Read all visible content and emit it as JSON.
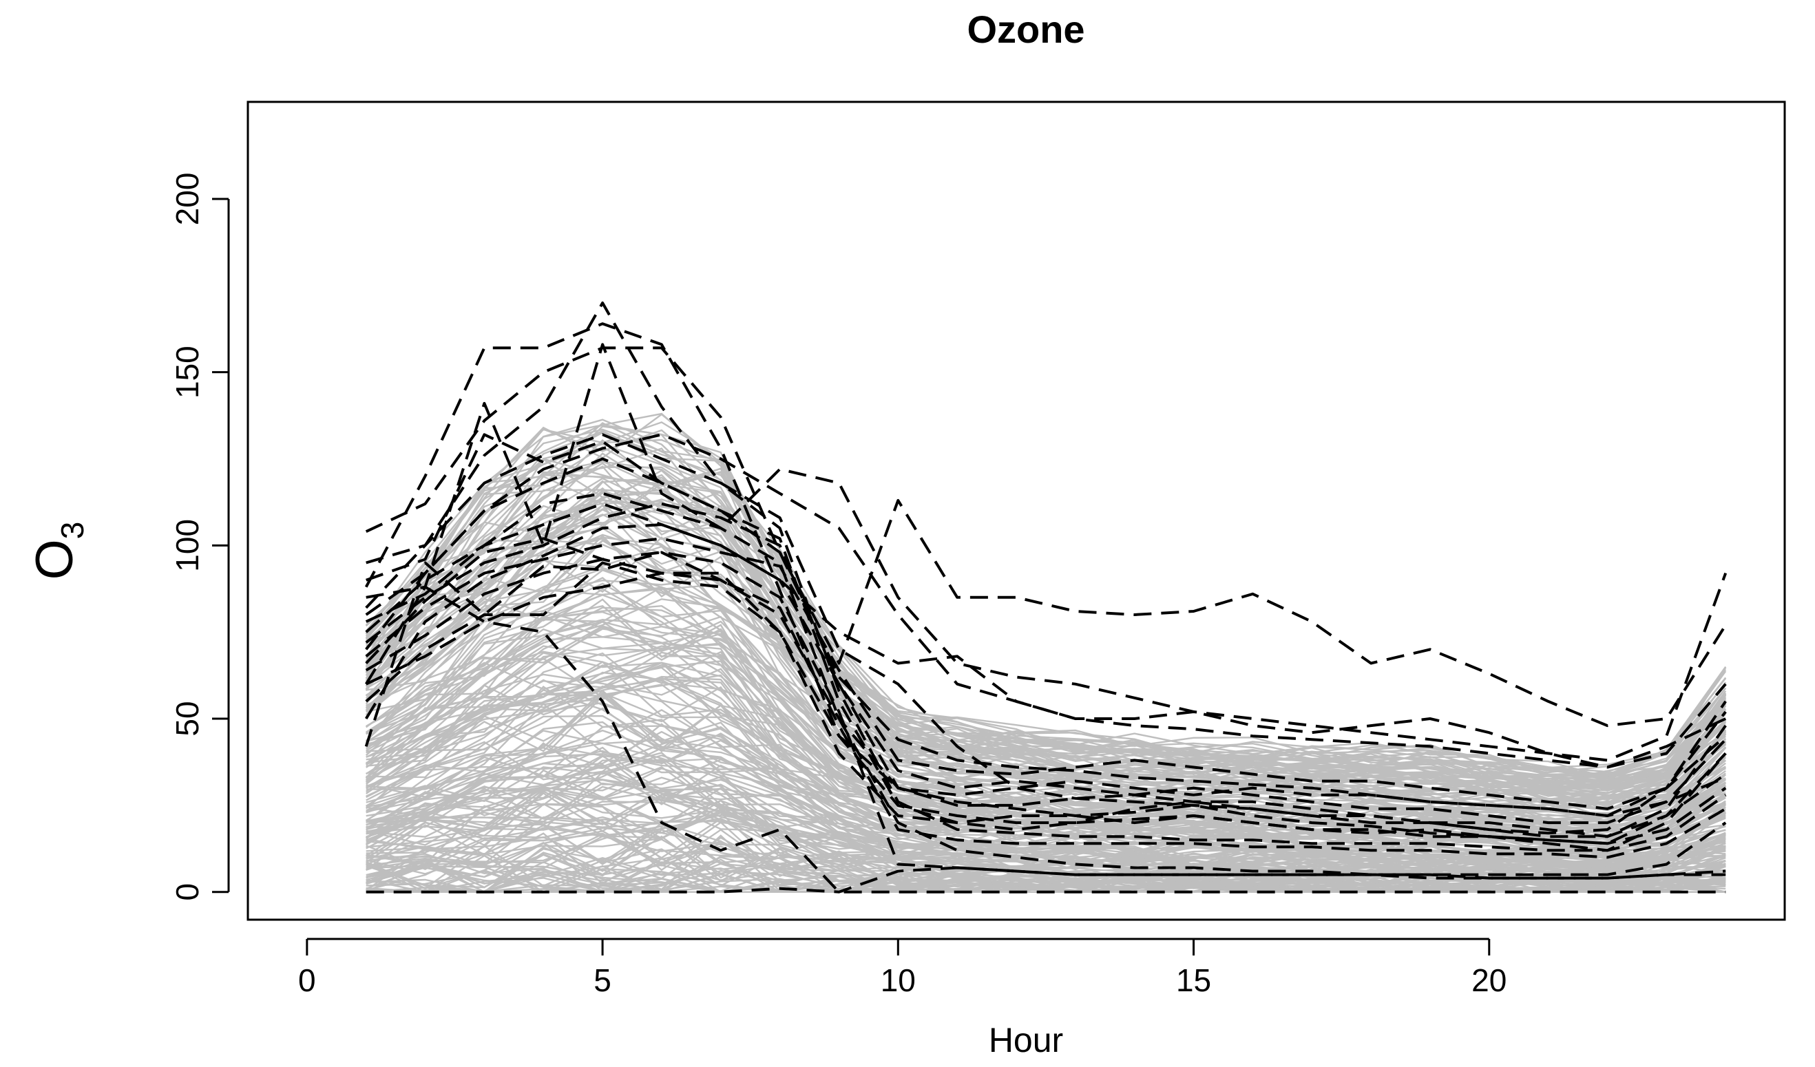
{
  "chart_data": {
    "type": "line",
    "title": "Ozone",
    "xlabel": "Hour",
    "ylabel": "O",
    "ylabel_subscript": "3",
    "xlim": [
      -1,
      25
    ],
    "ylim": [
      -8,
      228
    ],
    "x_ticks": [
      0,
      5,
      10,
      15,
      20
    ],
    "y_ticks": [
      0,
      50,
      100,
      150,
      200
    ],
    "grid": false,
    "legend": "none",
    "colors": {
      "background": "#bebebe",
      "outliers": "#000000",
      "frame": "#000000"
    },
    "background_curves_style": "solid gray, many overlapping daily curves",
    "outlier_style": "dashed black",
    "background_envelope": {
      "hours": [
        1,
        2,
        3,
        4,
        5,
        6,
        7,
        8,
        9,
        10,
        11,
        12,
        13,
        14,
        15,
        16,
        17,
        18,
        19,
        20,
        21,
        22,
        23,
        24
      ],
      "lower": [
        0,
        0,
        0,
        0,
        0,
        0,
        0,
        0,
        0,
        0,
        0,
        0,
        0,
        0,
        0,
        0,
        0,
        0,
        0,
        0,
        0,
        0,
        0,
        0
      ],
      "median": [
        12,
        20,
        30,
        38,
        45,
        45,
        38,
        28,
        18,
        12,
        10,
        10,
        10,
        10,
        11,
        11,
        10,
        10,
        10,
        9,
        8,
        8,
        9,
        11
      ],
      "upper": [
        75,
        95,
        115,
        128,
        135,
        132,
        125,
        95,
        68,
        52,
        48,
        46,
        44,
        43,
        42,
        42,
        41,
        41,
        40,
        38,
        36,
        35,
        40,
        62
      ]
    },
    "series": [
      {
        "values": [
          88,
          120,
          157,
          157,
          164,
          158,
          128,
          87,
          45,
          30,
          26,
          24,
          22,
          23,
          25,
          22,
          20,
          19,
          17,
          16,
          15,
          14,
          22,
          34
        ]
      },
      {
        "values": [
          104,
          112,
          136,
          150,
          157,
          157,
          137,
          98,
          62,
          44,
          38,
          36,
          35,
          33,
          32,
          31,
          30,
          28,
          26,
          25,
          24,
          22,
          30,
          55
        ]
      },
      {
        "values": [
          82,
          100,
          126,
          140,
          170,
          140,
          118,
          108,
          70,
          60,
          42,
          30,
          27,
          26,
          25,
          24,
          22,
          22,
          20,
          18,
          17,
          18,
          30,
          45
        ]
      },
      {
        "values": [
          70,
          92,
          110,
          122,
          128,
          132,
          125,
          115,
          105,
          80,
          60,
          55,
          50,
          48,
          47,
          45,
          44,
          43,
          42,
          40,
          38,
          36,
          40,
          60
        ]
      },
      {
        "values": [
          60,
          88,
          141,
          100,
          158,
          115,
          105,
          122,
          118,
          85,
          66,
          62,
          60,
          56,
          52,
          50,
          48,
          46,
          44,
          42,
          40,
          38,
          45,
          92
        ]
      },
      {
        "values": [
          90,
          96,
          132,
          124,
          130,
          118,
          110,
          98,
          66,
          113,
          85,
          85,
          81,
          80,
          81,
          86,
          78,
          66,
          70,
          63,
          55,
          48,
          50,
          77
        ]
      },
      {
        "values": [
          75,
          90,
          100,
          106,
          112,
          106,
          100,
          90,
          75,
          66,
          68,
          55,
          50,
          50,
          52,
          48,
          46,
          48,
          50,
          46,
          40,
          36,
          42,
          50
        ]
      },
      {
        "values": [
          66,
          84,
          98,
          102,
          96,
          92,
          92,
          75,
          45,
          25,
          20,
          22,
          22,
          20,
          22,
          20,
          18,
          18,
          16,
          16,
          14,
          12,
          20,
          40
        ]
      },
      {
        "values": [
          55,
          70,
          80,
          80,
          95,
          90,
          88,
          75,
          40,
          22,
          20,
          18,
          20,
          21,
          22,
          20,
          18,
          17,
          18,
          16,
          15,
          14,
          18,
          30
        ]
      },
      {
        "values": [
          78,
          86,
          100,
          112,
          115,
          110,
          105,
          95,
          50,
          20,
          12,
          10,
          8,
          7,
          7,
          6,
          6,
          5,
          5,
          5,
          5,
          5,
          8,
          20
        ]
      },
      {
        "values": [
          64,
          74,
          86,
          92,
          96,
          98,
          95,
          85,
          52,
          8,
          7,
          6,
          5,
          5,
          5,
          5,
          5,
          5,
          5,
          4,
          4,
          4,
          5,
          6
        ]
      },
      {
        "values": [
          80,
          92,
          110,
          118,
          125,
          118,
          110,
          102,
          55,
          25,
          22,
          20,
          20,
          24,
          26,
          24,
          22,
          20,
          20,
          18,
          16,
          16,
          22,
          40
        ]
      },
      {
        "values": [
          42,
          95,
          80,
          94,
          93,
          98,
          90,
          80,
          50,
          30,
          28,
          30,
          32,
          30,
          28,
          30,
          28,
          28,
          26,
          25,
          24,
          22,
          26,
          33
        ]
      },
      {
        "values": [
          50,
          78,
          90,
          97,
          105,
          106,
          100,
          90,
          60,
          35,
          30,
          32,
          30,
          28,
          26,
          26,
          24,
          22,
          20,
          20,
          18,
          16,
          24,
          48
        ]
      },
      {
        "values": [
          85,
          88,
          78,
          75,
          55,
          20,
          12,
          18,
          0,
          0,
          0,
          0,
          0,
          0,
          0,
          0,
          0,
          0,
          0,
          0,
          0,
          0,
          0,
          0
        ]
      },
      {
        "values": [
          0,
          0,
          0,
          0,
          0,
          0,
          0,
          1,
          0,
          6,
          7,
          6,
          5,
          5,
          5,
          5,
          5,
          5,
          4,
          4,
          4,
          4,
          5,
          5
        ]
      },
      {
        "values": [
          72,
          85,
          95,
          100,
          108,
          112,
          108,
          100,
          60,
          30,
          25,
          25,
          27,
          28,
          30,
          28,
          26,
          24,
          24,
          22,
          20,
          20,
          26,
          44
        ]
      },
      {
        "values": [
          95,
          100,
          118,
          126,
          132,
          125,
          118,
          105,
          58,
          26,
          18,
          17,
          16,
          16,
          15,
          15,
          14,
          14,
          14,
          13,
          12,
          12,
          16,
          28
        ]
      },
      {
        "values": [
          60,
          68,
          78,
          85,
          88,
          92,
          90,
          82,
          48,
          18,
          15,
          14,
          14,
          14,
          14,
          13,
          13,
          12,
          12,
          11,
          11,
          10,
          14,
          24
        ]
      },
      {
        "values": [
          68,
          82,
          92,
          96,
          100,
          102,
          98,
          94,
          64,
          38,
          35,
          34,
          36,
          38,
          36,
          34,
          32,
          32,
          30,
          28,
          26,
          24,
          30,
          52
        ]
      }
    ]
  }
}
